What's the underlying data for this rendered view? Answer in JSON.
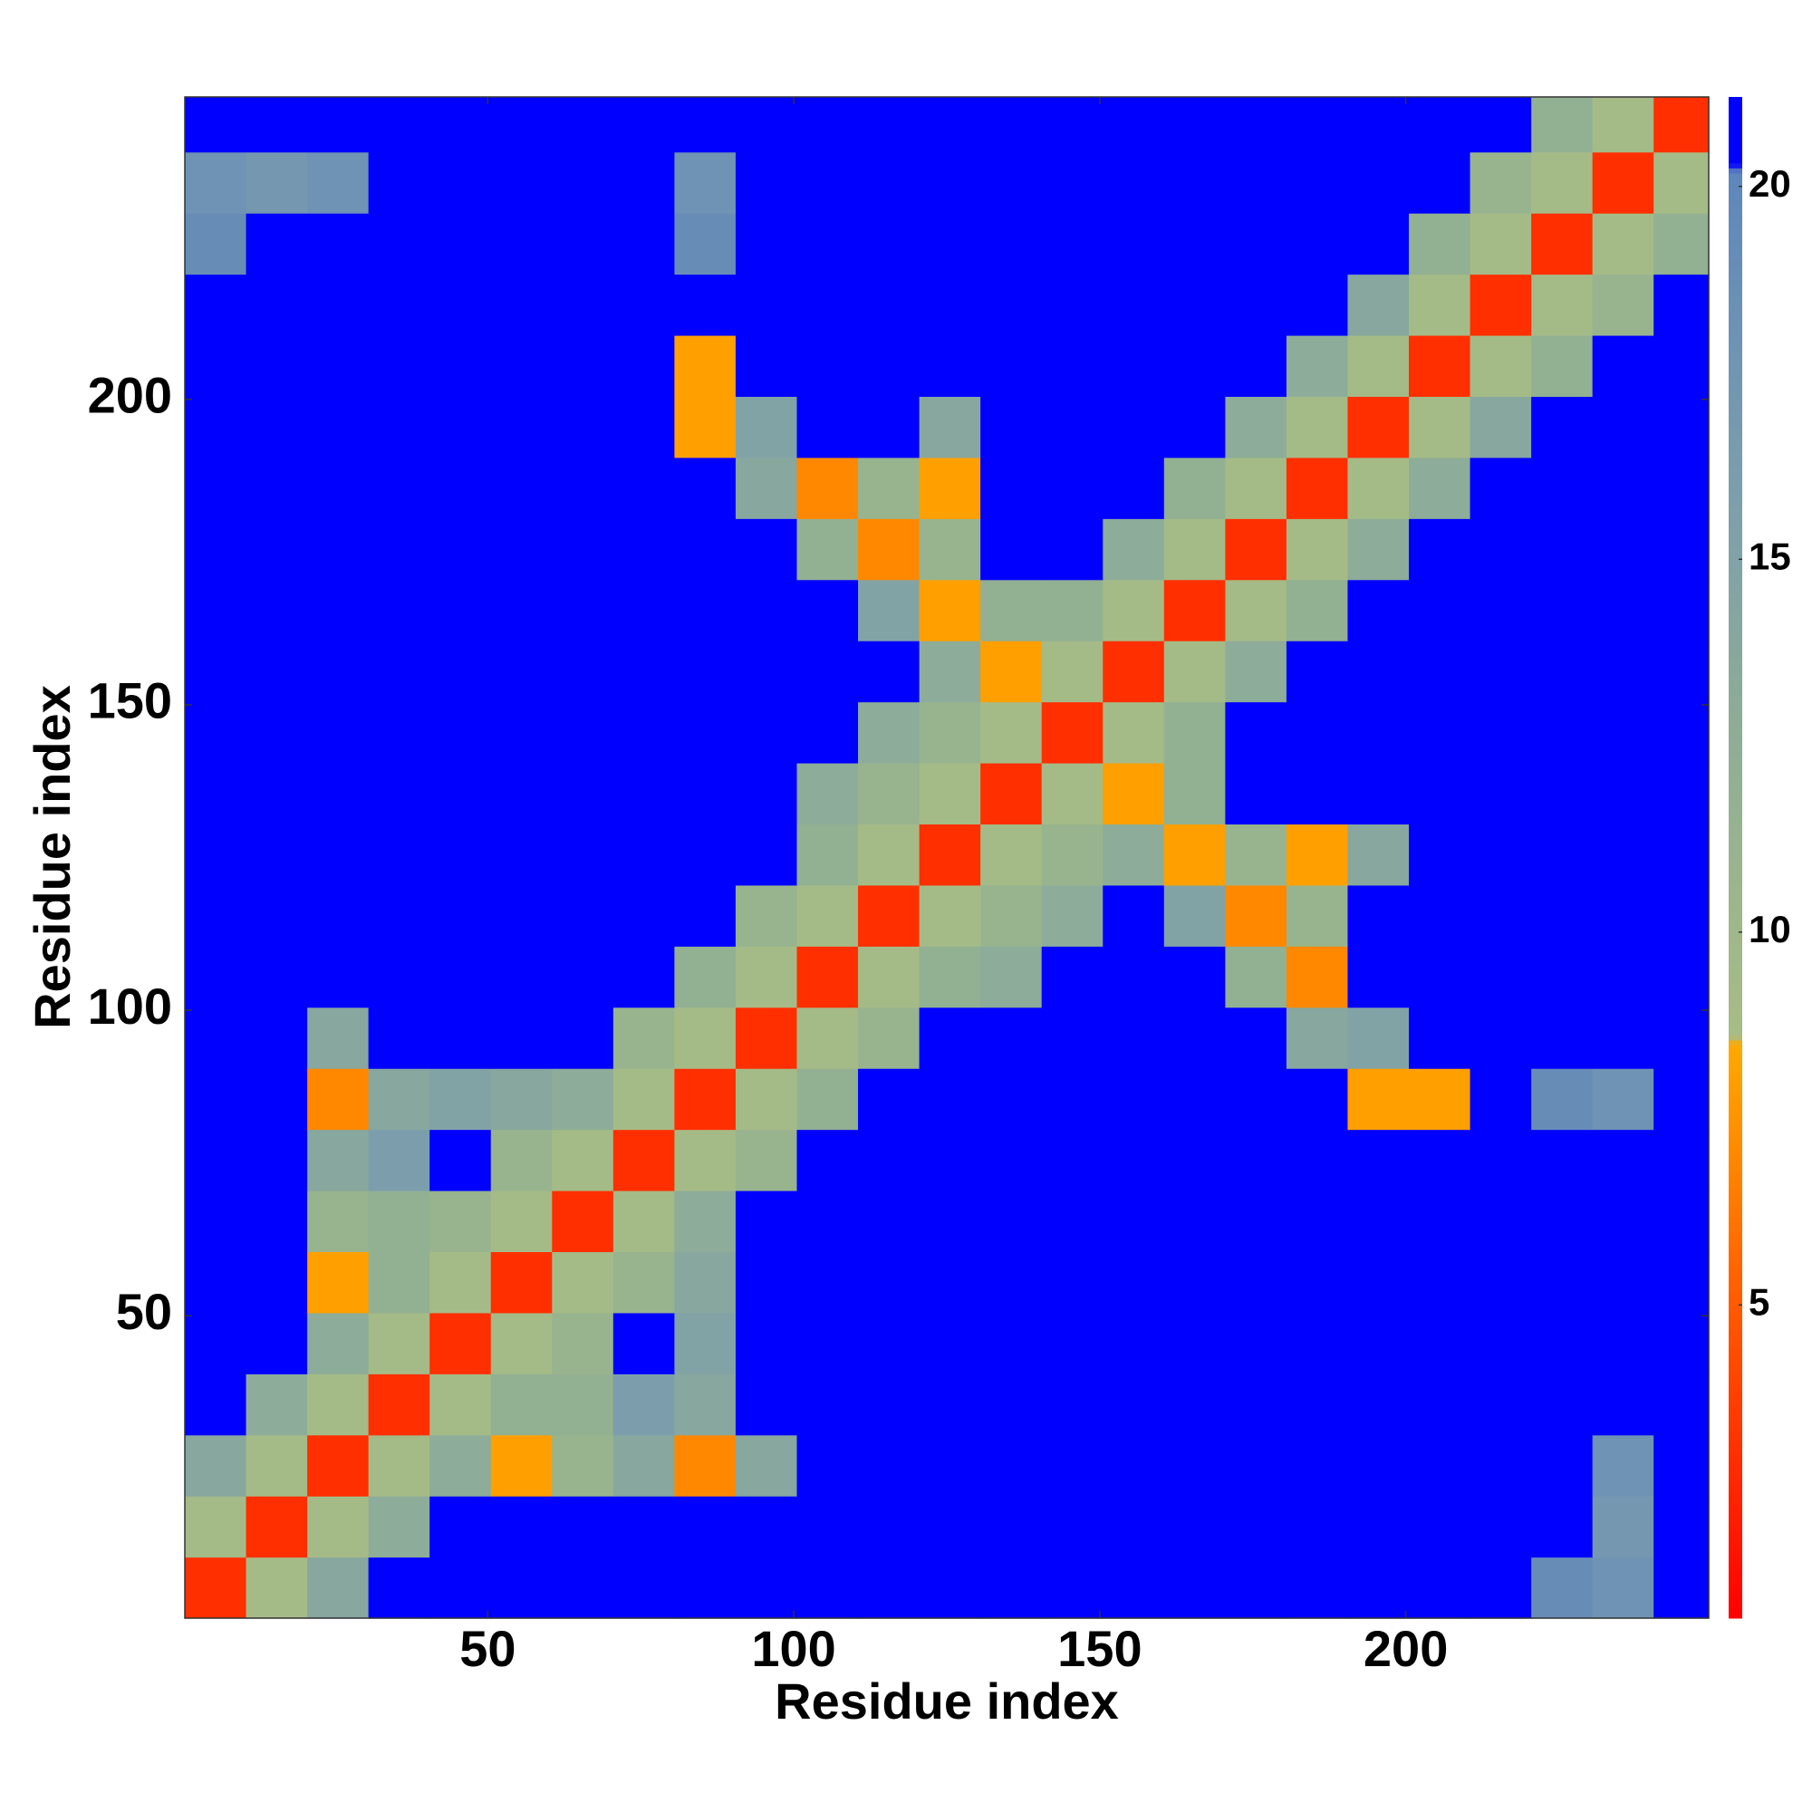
{
  "chart_data": {
    "type": "heatmap",
    "xlabel": "Residue index",
    "ylabel": "Residue index",
    "xbins": [
      0.5,
      10.5,
      20.5,
      30.5,
      40.5,
      50.5,
      60.5,
      70.5,
      80.5,
      90.5,
      100.5,
      110.5,
      120.5,
      130.5,
      140.5,
      150.5,
      160.5,
      170.5,
      180.5,
      190.5,
      200.5,
      210.5,
      220.5,
      230.5,
      240.5,
      249.5
    ],
    "ybins": [
      0.5,
      10.5,
      20.5,
      30.5,
      40.5,
      50.5,
      60.5,
      70.5,
      80.5,
      90.5,
      100.5,
      110.5,
      120.5,
      130.5,
      140.5,
      150.5,
      160.5,
      170.5,
      180.5,
      190.5,
      200.5,
      210.5,
      220.5,
      230.5,
      240.5,
      249.5
    ],
    "z": [
      [
        3,
        9,
        14,
        21,
        21,
        21,
        21,
        21,
        21,
        21,
        21,
        21,
        21,
        21,
        21,
        21,
        21,
        21,
        21,
        21,
        21,
        21,
        19,
        18,
        21
      ],
      [
        9,
        3,
        9,
        13,
        21,
        21,
        21,
        21,
        21,
        21,
        21,
        21,
        21,
        21,
        21,
        21,
        21,
        21,
        21,
        21,
        21,
        21,
        21,
        17,
        21
      ],
      [
        14,
        9,
        3,
        9,
        13,
        8,
        11,
        14,
        7,
        14,
        21,
        21,
        21,
        21,
        21,
        21,
        21,
        21,
        21,
        21,
        21,
        21,
        21,
        18,
        21
      ],
      [
        21,
        13,
        9,
        3,
        9,
        12,
        12,
        16,
        14,
        21,
        21,
        21,
        21,
        21,
        21,
        21,
        21,
        21,
        21,
        21,
        21,
        21,
        21,
        21,
        21
      ],
      [
        21,
        21,
        13,
        9,
        3,
        9,
        11,
        21,
        15,
        21,
        21,
        21,
        21,
        21,
        21,
        21,
        21,
        21,
        21,
        21,
        21,
        21,
        21,
        21,
        21
      ],
      [
        21,
        21,
        8,
        12,
        9,
        3,
        9,
        11,
        14,
        21,
        21,
        21,
        21,
        21,
        21,
        21,
        21,
        21,
        21,
        21,
        21,
        21,
        21,
        21,
        21
      ],
      [
        21,
        21,
        11,
        12,
        11,
        9,
        3,
        9,
        13,
        21,
        21,
        21,
        21,
        21,
        21,
        21,
        21,
        21,
        21,
        21,
        21,
        21,
        21,
        21,
        21
      ],
      [
        21,
        21,
        14,
        16,
        21,
        11,
        9,
        3,
        9,
        11,
        21,
        21,
        21,
        21,
        21,
        21,
        21,
        21,
        21,
        21,
        21,
        21,
        21,
        21,
        21
      ],
      [
        21,
        21,
        7,
        14,
        15,
        14,
        13,
        9,
        3,
        9,
        12,
        21,
        21,
        21,
        21,
        21,
        21,
        21,
        21,
        8,
        8,
        21,
        19,
        18,
        21
      ],
      [
        21,
        21,
        14,
        21,
        21,
        21,
        21,
        11,
        9,
        3,
        9,
        11,
        21,
        21,
        21,
        21,
        21,
        21,
        14,
        15,
        21,
        21,
        21,
        21,
        21
      ],
      [
        21,
        21,
        21,
        21,
        21,
        21,
        21,
        21,
        12,
        9,
        3,
        9,
        12,
        13,
        21,
        21,
        21,
        12,
        7,
        21,
        21,
        21,
        21,
        21,
        21
      ],
      [
        21,
        21,
        21,
        21,
        21,
        21,
        21,
        21,
        21,
        11,
        9,
        3,
        9,
        11,
        13,
        21,
        15,
        7,
        11,
        21,
        21,
        21,
        21,
        21,
        21
      ],
      [
        21,
        21,
        21,
        21,
        21,
        21,
        21,
        21,
        21,
        21,
        12,
        9,
        3,
        9,
        11,
        13,
        8,
        11,
        8,
        14,
        21,
        21,
        21,
        21,
        21
      ],
      [
        21,
        21,
        21,
        21,
        21,
        21,
        21,
        21,
        21,
        21,
        13,
        11,
        9,
        3,
        9,
        8,
        12,
        21,
        21,
        21,
        21,
        21,
        21,
        21,
        21
      ],
      [
        21,
        21,
        21,
        21,
        21,
        21,
        21,
        21,
        21,
        21,
        21,
        13,
        11,
        9,
        3,
        9,
        12,
        21,
        21,
        21,
        21,
        21,
        21,
        21,
        21
      ],
      [
        21,
        21,
        21,
        21,
        21,
        21,
        21,
        21,
        21,
        21,
        21,
        21,
        13,
        8,
        9,
        3,
        9,
        13,
        21,
        21,
        21,
        21,
        21,
        21,
        21
      ],
      [
        21,
        21,
        21,
        21,
        21,
        21,
        21,
        21,
        21,
        21,
        21,
        15,
        8,
        12,
        12,
        9,
        3,
        9,
        12,
        21,
        21,
        21,
        21,
        21,
        21
      ],
      [
        21,
        21,
        21,
        21,
        21,
        21,
        21,
        21,
        21,
        21,
        12,
        7,
        11,
        21,
        21,
        13,
        9,
        3,
        9,
        13,
        21,
        21,
        21,
        21,
        21
      ],
      [
        21,
        21,
        21,
        21,
        21,
        21,
        21,
        21,
        21,
        14,
        7,
        11,
        8,
        21,
        21,
        21,
        12,
        9,
        3,
        9,
        13,
        21,
        21,
        21,
        21
      ],
      [
        21,
        21,
        21,
        21,
        21,
        21,
        21,
        21,
        8,
        15,
        21,
        21,
        14,
        21,
        21,
        21,
        21,
        13,
        9,
        3,
        9,
        14,
        21,
        21,
        21
      ],
      [
        21,
        21,
        21,
        21,
        21,
        21,
        21,
        21,
        8,
        21,
        21,
        21,
        21,
        21,
        21,
        21,
        21,
        21,
        13,
        9,
        3,
        9,
        12,
        21,
        21
      ],
      [
        21,
        21,
        21,
        21,
        21,
        21,
        21,
        21,
        21,
        21,
        21,
        21,
        21,
        21,
        21,
        21,
        21,
        21,
        21,
        14,
        9,
        3,
        9,
        11,
        21
      ],
      [
        19,
        21,
        21,
        21,
        21,
        21,
        21,
        21,
        19,
        21,
        21,
        21,
        21,
        21,
        21,
        21,
        21,
        21,
        21,
        21,
        12,
        9,
        3,
        9,
        12
      ],
      [
        18,
        17,
        18,
        21,
        21,
        21,
        21,
        21,
        18,
        21,
        21,
        21,
        21,
        21,
        21,
        21,
        21,
        21,
        21,
        21,
        21,
        11,
        9,
        3,
        9
      ],
      [
        21,
        21,
        21,
        21,
        21,
        21,
        21,
        21,
        21,
        21,
        21,
        21,
        21,
        21,
        21,
        21,
        21,
        21,
        21,
        21,
        21,
        21,
        12,
        9,
        3
      ]
    ],
    "xlim": [
      0.5,
      249.5
    ],
    "ylim": [
      0.5,
      249.5
    ],
    "xticks": [
      50,
      100,
      150,
      200
    ],
    "yticks": [
      50,
      100,
      150,
      200
    ],
    "clim": [
      0.8,
      21.2
    ],
    "cticks": [
      5,
      10,
      15,
      20
    ],
    "colorscale": [
      [
        0.8,
        "#ff0000"
      ],
      [
        5,
        "#ff5a00"
      ],
      [
        8.5,
        "#ffaa00"
      ],
      [
        8.6,
        "#a8bc86"
      ],
      [
        12,
        "#92b092"
      ],
      [
        16,
        "#7c9eac"
      ],
      [
        20.2,
        "#5f86bc"
      ],
      [
        20.3,
        "#0000ff"
      ],
      [
        21.2,
        "#0000ff"
      ]
    ]
  }
}
